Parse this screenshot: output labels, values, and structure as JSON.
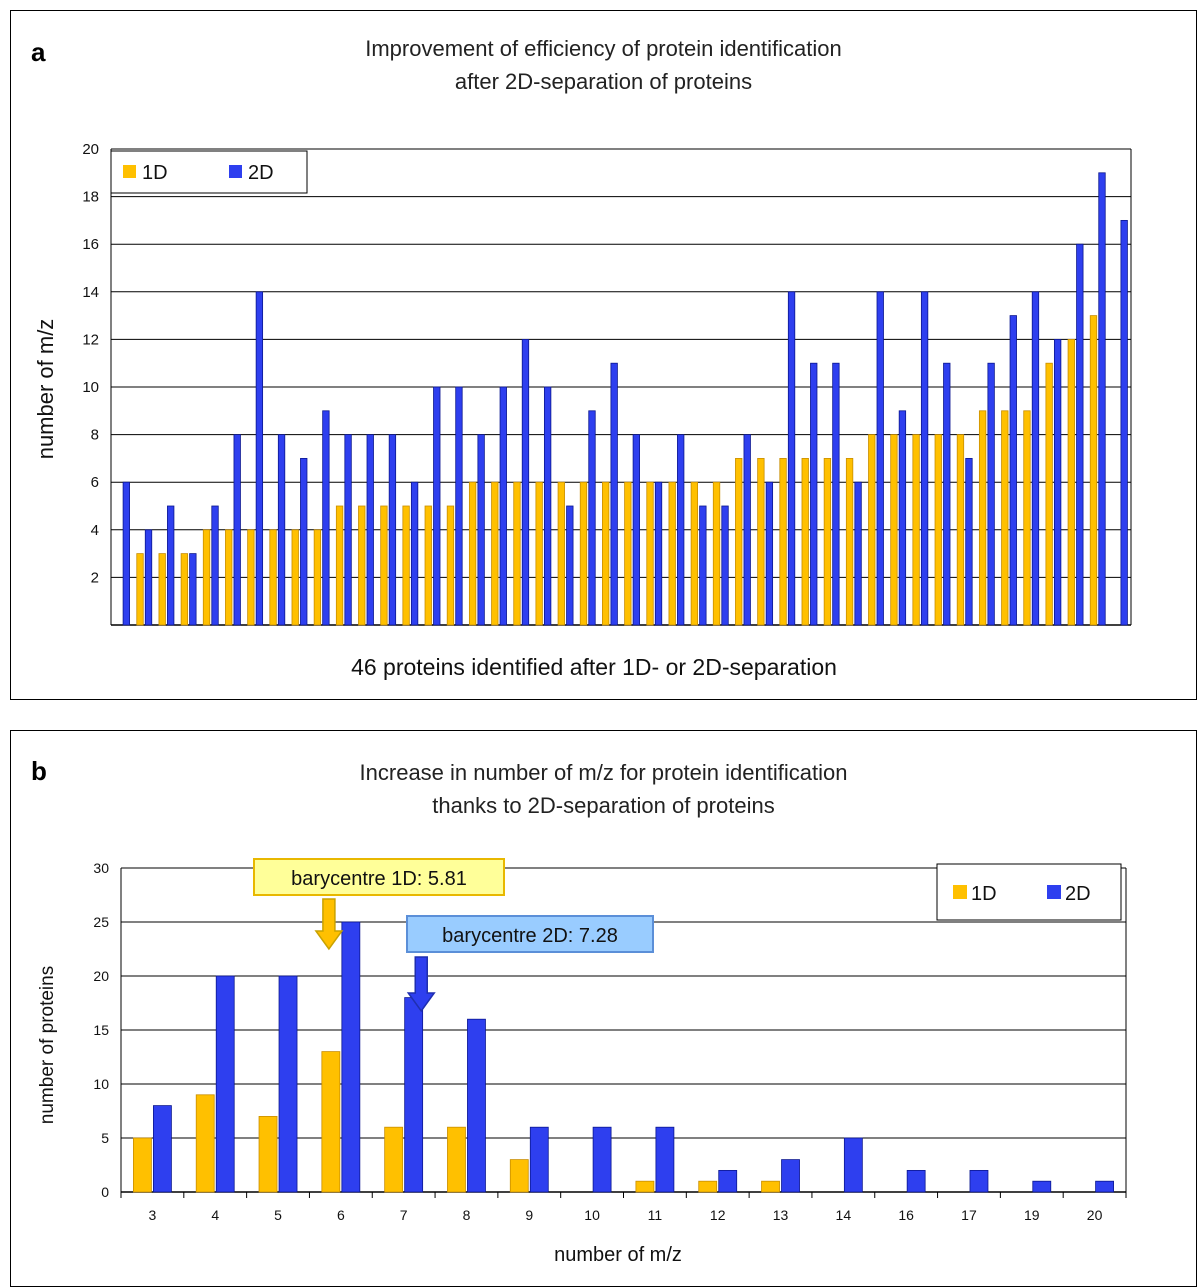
{
  "colors": {
    "series_1d": "#FFC000",
    "series_2d": "#2E3FEF",
    "grid": "#000000"
  },
  "chart_data": [
    {
      "panel": "a",
      "type": "bar",
      "title": "Improvement of efficiency of protein identification",
      "subtitle": "after 2D-separation of proteins",
      "xlabel": "46 proteins identified after 1D- or 2D-separation",
      "ylabel": "number of m/z",
      "ylim": [
        0,
        20
      ],
      "yticks": [
        2,
        4,
        6,
        8,
        10,
        12,
        14,
        16,
        18,
        20
      ],
      "grid": true,
      "legend": "top-left",
      "series": [
        {
          "name": "1D",
          "color": "#FFC000",
          "values": [
            0,
            3,
            3,
            3,
            4,
            4,
            4,
            4,
            4,
            4,
            5,
            5,
            5,
            5,
            5,
            5,
            6,
            6,
            6,
            6,
            6,
            6,
            6,
            6,
            6,
            6,
            6,
            6,
            7,
            7,
            7,
            7,
            7,
            7,
            8,
            8,
            8,
            8,
            8,
            9,
            9,
            9,
            11,
            12,
            13,
            0
          ]
        },
        {
          "name": "2D",
          "color": "#2E3FEF",
          "values": [
            6,
            4,
            5,
            3,
            5,
            8,
            14,
            8,
            7,
            9,
            8,
            8,
            8,
            6,
            10,
            10,
            8,
            10,
            12,
            10,
            5,
            9,
            11,
            8,
            6,
            8,
            5,
            5,
            8,
            6,
            14,
            11,
            11,
            6,
            14,
            9,
            14,
            11,
            7,
            11,
            13,
            14,
            12,
            16,
            19,
            17
          ]
        }
      ]
    },
    {
      "panel": "b",
      "type": "bar",
      "title": "Increase in number of m/z for protein identification",
      "subtitle": "thanks to 2D-separation of proteins",
      "xlabel": "number of m/z",
      "ylabel": "number of proteins",
      "ylim": [
        0,
        30
      ],
      "yticks": [
        0,
        5,
        10,
        15,
        20,
        25,
        30
      ],
      "grid": true,
      "legend": "top-right",
      "categories": [
        "3",
        "4",
        "5",
        "6",
        "7",
        "8",
        "9",
        "10",
        "11",
        "12",
        "13",
        "14",
        "16",
        "17",
        "19",
        "20"
      ],
      "series": [
        {
          "name": "1D",
          "color": "#FFC000",
          "values": [
            5,
            9,
            7,
            13,
            6,
            6,
            3,
            0,
            1,
            1,
            1,
            0,
            0,
            0,
            0,
            0
          ]
        },
        {
          "name": "2D",
          "color": "#2E3FEF",
          "values": [
            8,
            20,
            20,
            25,
            18,
            16,
            6,
            6,
            6,
            2,
            3,
            5,
            2,
            2,
            1,
            1
          ]
        }
      ],
      "annotations": [
        {
          "text": "barycentre 1D: 5.81",
          "x": 5.81,
          "color": "#FFC000",
          "box_fill": "#FFFF99"
        },
        {
          "text": "barycentre 2D: 7.28",
          "x": 7.28,
          "color": "#2E3FEF",
          "box_fill": "#99CCFF"
        }
      ]
    }
  ]
}
